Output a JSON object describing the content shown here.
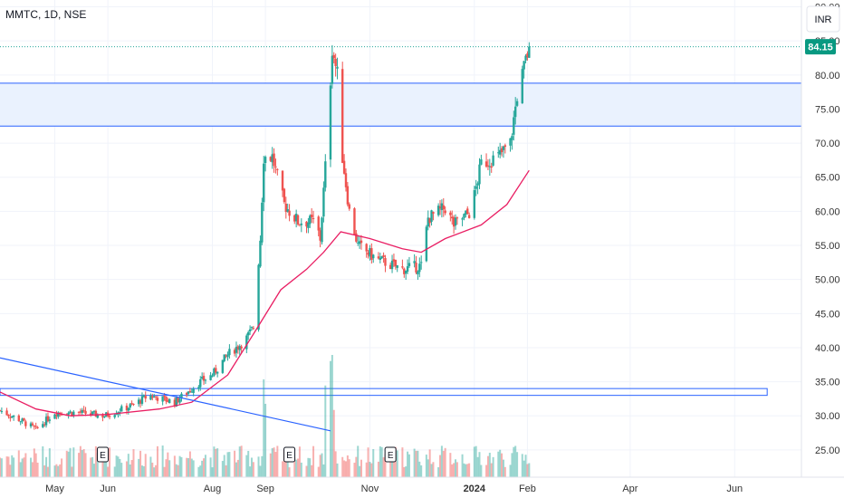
{
  "header": {
    "symbol": "MMTC, 1D, NSE",
    "currency": "INR"
  },
  "last_price_label": "84.15",
  "colors": {
    "up": "#26a69a",
    "down": "#ef5350",
    "ma": "#e91e63",
    "trendline": "#2962ff",
    "grid": "#f0f3fa",
    "zone_fill": "#eaf2fe",
    "last_price_bg": "#089981"
  },
  "chart_data": {
    "type": "candlestick",
    "title": "MMTC, 1D, NSE",
    "ylim": [
      21,
      91
    ],
    "y_ticks": [
      25,
      30,
      35,
      40,
      45,
      50,
      55,
      60,
      65,
      70,
      75,
      80,
      85,
      90
    ],
    "y_tick_labels": [
      "25.00",
      "30.00",
      "35.00",
      "40.00",
      "45.00",
      "50.00",
      "55.00",
      "60.00",
      "65.00",
      "70.00",
      "75.00",
      "80.00",
      "85.00",
      "90.00"
    ],
    "x_range": [
      "2023-03-30",
      "2024-07-10"
    ],
    "x_ticks": [
      {
        "label": "May",
        "date": "2023-05-01"
      },
      {
        "label": "Jun",
        "date": "2023-06-01"
      },
      {
        "label": "Aug",
        "date": "2023-08-01"
      },
      {
        "label": "Sep",
        "date": "2023-09-01"
      },
      {
        "label": "Nov",
        "date": "2023-11-01"
      },
      {
        "label": "2024",
        "date": "2024-01-01",
        "bold": true
      },
      {
        "label": "Feb",
        "date": "2024-02-01"
      },
      {
        "label": "Apr",
        "date": "2024-04-01"
      },
      {
        "label": "Jun",
        "date": "2024-06-01"
      }
    ],
    "last_price": 84.15,
    "anchors": [
      [
        "2023-03-30",
        30.8
      ],
      [
        "2023-04-10",
        29.5
      ],
      [
        "2023-04-20",
        28.0
      ],
      [
        "2023-05-01",
        30.5
      ],
      [
        "2023-05-15",
        30.5
      ],
      [
        "2023-05-30",
        30.0
      ],
      [
        "2023-06-15",
        31.5
      ],
      [
        "2023-06-25",
        33.0
      ],
      [
        "2023-07-10",
        32.0
      ],
      [
        "2023-07-25",
        35.0
      ],
      [
        "2023-08-01",
        36.0
      ],
      [
        "2023-08-10",
        39.0
      ],
      [
        "2023-08-20",
        41.0
      ],
      [
        "2023-08-25",
        43.0
      ],
      [
        "2023-08-29",
        56.0
      ],
      [
        "2023-08-31",
        68.0
      ],
      [
        "2023-09-05",
        68.0
      ],
      [
        "2023-09-12",
        61.0
      ],
      [
        "2023-09-20",
        58.5
      ],
      [
        "2023-09-30",
        58.5
      ],
      [
        "2023-10-03",
        56.0
      ],
      [
        "2023-10-07",
        70.0
      ],
      [
        "2023-10-10",
        84.0
      ],
      [
        "2023-10-13",
        80.0
      ],
      [
        "2023-10-16",
        68.0
      ],
      [
        "2023-10-20",
        60.0
      ],
      [
        "2023-10-25",
        55.0
      ],
      [
        "2023-11-05",
        53.0
      ],
      [
        "2023-11-20",
        51.5
      ],
      [
        "2023-12-01",
        52.0
      ],
      [
        "2023-12-05",
        59.0
      ],
      [
        "2023-12-15",
        60.5
      ],
      [
        "2023-12-20",
        58.0
      ],
      [
        "2023-12-30",
        60.0
      ],
      [
        "2024-01-05",
        67.0
      ],
      [
        "2024-01-15",
        68.0
      ],
      [
        "2024-01-22",
        70.0
      ],
      [
        "2024-01-26",
        77.0
      ],
      [
        "2024-01-30",
        81.0
      ],
      [
        "2024-02-02",
        84.15
      ]
    ],
    "moving_average": [
      [
        "2023-03-30",
        33.5
      ],
      [
        "2023-04-20",
        31.0
      ],
      [
        "2023-05-10",
        30.0
      ],
      [
        "2023-06-01",
        30.2
      ],
      [
        "2023-07-01",
        31.0
      ],
      [
        "2023-07-20",
        32.0
      ],
      [
        "2023-08-10",
        36.0
      ],
      [
        "2023-08-25",
        42.0
      ],
      [
        "2023-09-10",
        48.5
      ],
      [
        "2023-09-25",
        51.5
      ],
      [
        "2023-10-05",
        54.0
      ],
      [
        "2023-10-15",
        57.0
      ],
      [
        "2023-11-01",
        56.0
      ],
      [
        "2023-11-20",
        54.5
      ],
      [
        "2023-12-01",
        54.0
      ],
      [
        "2023-12-15",
        56.0
      ],
      [
        "2024-01-05",
        58.0
      ],
      [
        "2024-01-20",
        61.0
      ],
      [
        "2024-02-02",
        66.0
      ]
    ],
    "volume_spikes": [
      [
        "2023-08-31",
        0.8
      ],
      [
        "2023-09-01",
        0.6
      ],
      [
        "2023-10-06",
        0.75
      ],
      [
        "2023-10-09",
        0.95
      ],
      [
        "2023-10-10",
        1.0
      ],
      [
        "2023-10-11",
        0.55
      ]
    ],
    "volume_max_label": "",
    "annotations": {
      "resistance_zone": {
        "top": 78.8,
        "bottom": 72.5
      },
      "support_box": {
        "top": 34.0,
        "bottom": 33.0,
        "from": "2023-03-30",
        "to": "2024-06-20"
      },
      "trendline": {
        "from": [
          "2023-03-30",
          38.5
        ],
        "to": [
          "2023-10-09",
          27.8
        ]
      },
      "last_price_line": 84.15
    },
    "events": [
      {
        "label": "E",
        "date": "2023-05-29"
      },
      {
        "label": "E",
        "date": "2023-09-15"
      },
      {
        "label": "E",
        "date": "2023-11-13"
      }
    ]
  }
}
